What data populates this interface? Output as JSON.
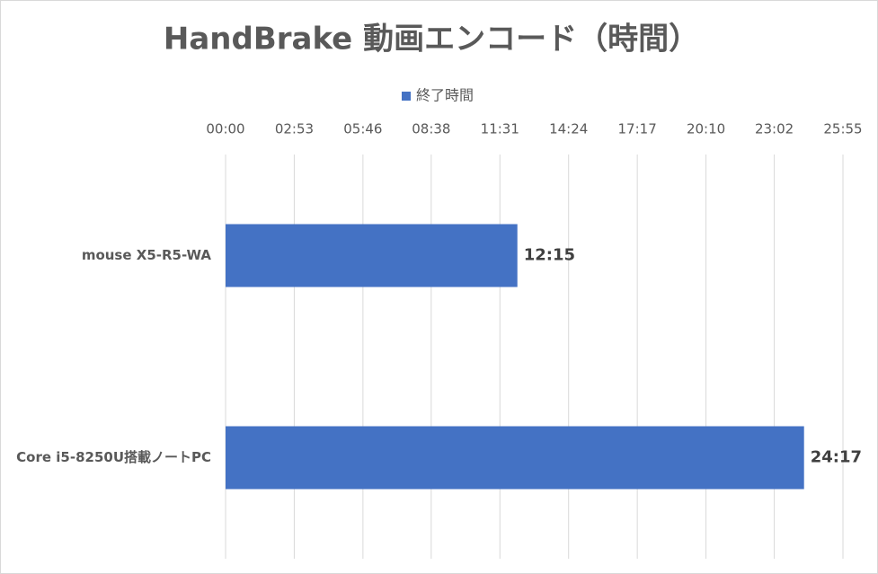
{
  "chart_data": {
    "type": "bar",
    "orientation": "horizontal",
    "title": "HandBrake 動画エンコード（時間）",
    "categories": [
      "mouse X5-R5-WA",
      "Core i5-8250U搭載ノートPC"
    ],
    "series": [
      {
        "name": "終了時間",
        "color": "#4472c4",
        "values": [
          735,
          1457
        ],
        "value_labels": [
          "12:15",
          "24:17"
        ]
      }
    ],
    "xlim": [
      0,
      1555
    ],
    "xticks": [
      {
        "value": 0,
        "label": "00:00"
      },
      {
        "value": 173,
        "label": "02:53"
      },
      {
        "value": 346,
        "label": "05:46"
      },
      {
        "value": 518,
        "label": "08:38"
      },
      {
        "value": 691,
        "label": "11:31"
      },
      {
        "value": 864,
        "label": "14:24"
      },
      {
        "value": 1037,
        "label": "17:17"
      },
      {
        "value": 1210,
        "label": "20:10"
      },
      {
        "value": 1382,
        "label": "23:02"
      },
      {
        "value": 1555,
        "label": "25:55"
      }
    ],
    "grid": true,
    "legend": "top"
  }
}
